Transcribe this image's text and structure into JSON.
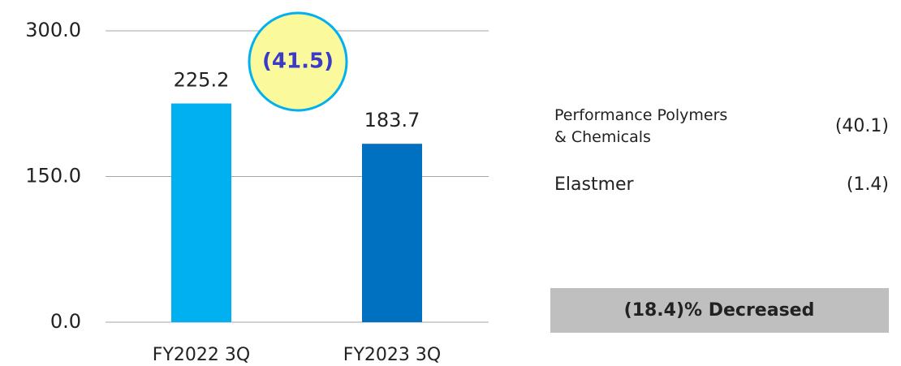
{
  "chart_data": {
    "type": "bar",
    "categories": [
      "FY2022 3Q",
      "FY2023 3Q"
    ],
    "values": [
      225.2,
      183.7
    ],
    "colors": [
      "#00b0f0",
      "#0070c0"
    ],
    "ylim": [
      0,
      300
    ],
    "yticks": [
      {
        "value": 0,
        "label": "0.0"
      },
      {
        "value": 150,
        "label": "150.0"
      },
      {
        "value": 300,
        "label": "300.0"
      }
    ],
    "grid": true,
    "annotation": "(41.5)"
  },
  "breakdown": [
    {
      "label_lines": [
        "Performance Polymers",
        "& Chemicals"
      ],
      "value": "(40.1)"
    },
    {
      "label_lines": [
        "Elastmer"
      ],
      "value": "(1.4)"
    }
  ],
  "summary": "(18.4)% Decreased"
}
